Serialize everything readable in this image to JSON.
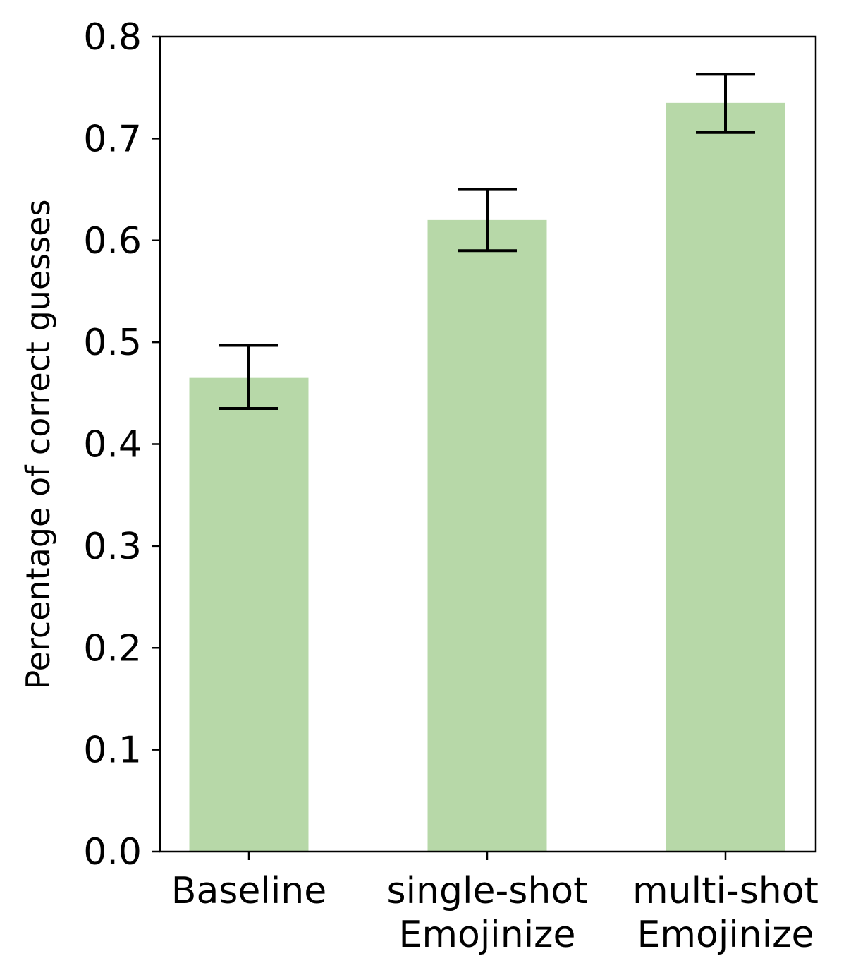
{
  "chart_data": {
    "type": "bar",
    "categories": [
      [
        "Baseline"
      ],
      [
        "single-shot",
        "Emojinize"
      ],
      [
        "multi-shot",
        "Emojinize"
      ]
    ],
    "values": [
      0.465,
      0.62,
      0.735
    ],
    "error_low": [
      0.435,
      0.59,
      0.706
    ],
    "error_high": [
      0.497,
      0.65,
      0.763
    ],
    "title": "",
    "xlabel": "",
    "ylabel": "Percentage of correct guesses",
    "ylim": [
      0,
      0.8
    ],
    "yticks": [
      "0.0",
      "0.1",
      "0.2",
      "0.3",
      "0.4",
      "0.5",
      "0.6",
      "0.7",
      "0.8"
    ],
    "bar_color": "#b7d8a8",
    "error_color": "#000000"
  }
}
